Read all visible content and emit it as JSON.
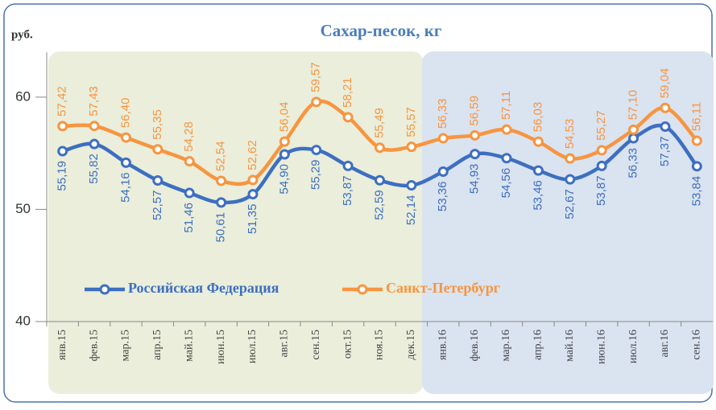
{
  "chart_data": {
    "type": "line",
    "title": "Сахар-песок, кг",
    "y_label": "руб.",
    "categories": [
      "янв.15",
      "фев.15",
      "мар.15",
      "апр.15",
      "май.15",
      "июн.15",
      "июл.15",
      "авг.15",
      "сен.15",
      "окт.15",
      "ноя.15",
      "дек.15",
      "янв.16",
      "фев.16",
      "мар.16",
      "апр.16",
      "май.16",
      "июн.16",
      "июл.16",
      "авг.16",
      "сен.16"
    ],
    "series": [
      {
        "name": "Российская Федерация",
        "color": "#3d6fc0",
        "values": [
          55.19,
          55.82,
          54.16,
          52.57,
          51.46,
          50.61,
          51.35,
          54.9,
          55.29,
          53.87,
          52.59,
          52.14,
          53.36,
          54.93,
          54.56,
          53.46,
          52.67,
          53.87,
          56.33,
          57.37,
          53.84
        ],
        "value_labels": [
          "55,19",
          "55,82",
          "54,16",
          "52,57",
          "51,46",
          "50,61",
          "51,35",
          "54,90",
          "55,29",
          "53,87",
          "52,59",
          "52,14",
          "53,36",
          "54,93",
          "54,56",
          "53,46",
          "52,67",
          "53,87",
          "56,33",
          "57,37",
          "53,84"
        ]
      },
      {
        "name": "Санкт-Петербург",
        "color": "#f79540",
        "values": [
          57.42,
          57.43,
          56.4,
          55.35,
          54.28,
          52.54,
          52.62,
          56.04,
          59.57,
          58.21,
          55.49,
          55.57,
          56.33,
          56.59,
          57.11,
          56.03,
          54.53,
          55.27,
          57.1,
          59.04,
          56.11
        ],
        "value_labels": [
          "57,42",
          "57,43",
          "56,40",
          "55,35",
          "54,28",
          "52,54",
          "52,62",
          "56,04",
          "59,57",
          "58,21",
          "55,49",
          "55,57",
          "56,33",
          "56,59",
          "57,11",
          "56,03",
          "54,53",
          "55,27",
          "57,10",
          "59,04",
          "56,11"
        ]
      }
    ],
    "ylim": [
      40,
      64
    ],
    "yticks": [
      40,
      50,
      60
    ],
    "grid": false
  }
}
